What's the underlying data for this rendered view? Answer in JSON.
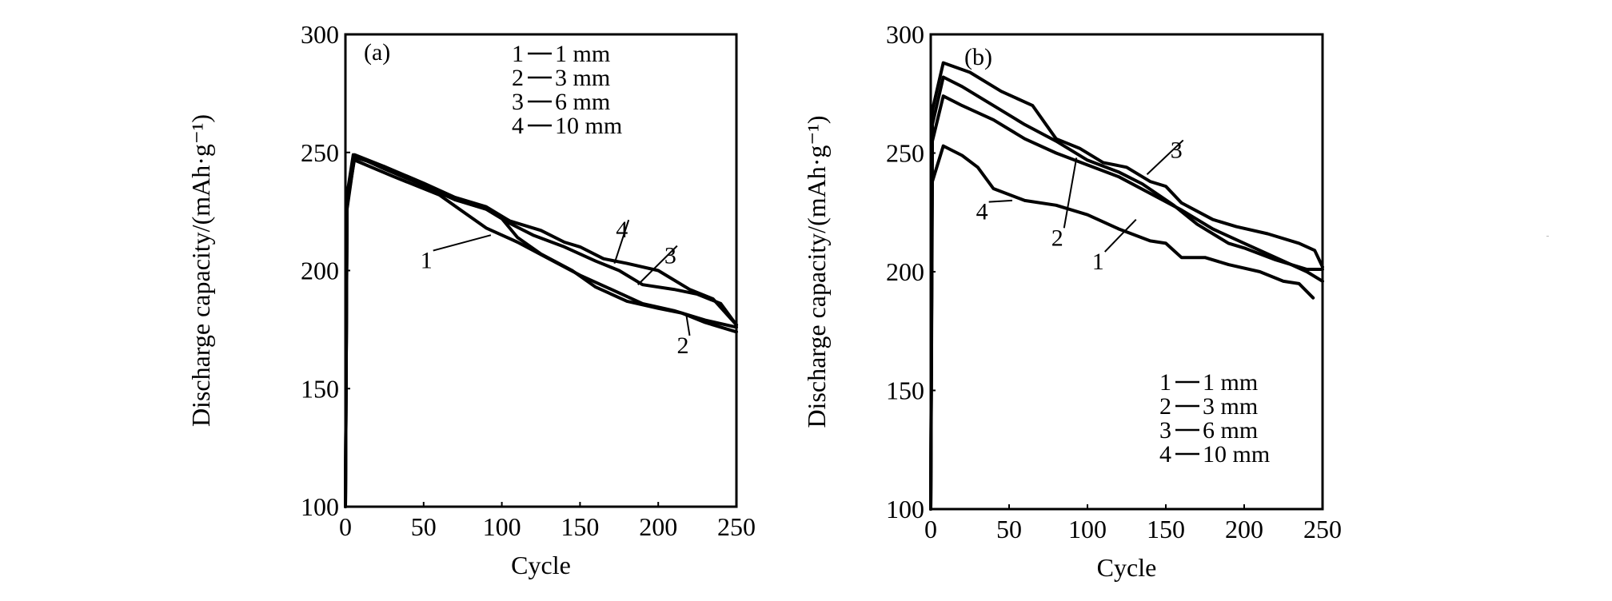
{
  "chart_data": [
    {
      "type": "line",
      "panel_label": "(a)",
      "xlabel": "Cycle",
      "ylabel": "Discharge capacity/(mAh·g⁻¹)",
      "xlim": [
        0,
        250
      ],
      "ylim": [
        100,
        300
      ],
      "xticks": [
        0,
        50,
        100,
        150,
        200,
        250
      ],
      "yticks": [
        100,
        150,
        200,
        250,
        300
      ],
      "grid": false,
      "legend_placement": "top-right",
      "legend": [
        {
          "num": "1",
          "label": "1 mm"
        },
        {
          "num": "2",
          "label": "3 mm"
        },
        {
          "num": "3",
          "label": "6 mm"
        },
        {
          "num": "4",
          "label": "10 mm"
        }
      ],
      "series": [
        {
          "name": "1",
          "x": [
            0,
            1,
            5,
            30,
            60,
            75,
            90,
            110,
            130,
            150,
            170,
            190,
            210,
            230,
            250
          ],
          "y": [
            100,
            230,
            247,
            240,
            232,
            225,
            218,
            212,
            205,
            198,
            192,
            186,
            183,
            179,
            176
          ]
        },
        {
          "name": "2",
          "x": [
            0,
            1,
            5,
            25,
            50,
            70,
            90,
            100,
            110,
            125,
            145,
            160,
            180,
            200,
            215,
            230,
            250
          ],
          "y": [
            100,
            232,
            249,
            243,
            236,
            230,
            226,
            222,
            214,
            207,
            200,
            193,
            187,
            184,
            182,
            178,
            174
          ]
        },
        {
          "name": "3",
          "x": [
            0,
            1,
            6,
            25,
            50,
            70,
            90,
            105,
            120,
            140,
            160,
            175,
            190,
            210,
            225,
            240,
            250
          ],
          "y": [
            100,
            228,
            248,
            244,
            236,
            230,
            226,
            220,
            215,
            210,
            204,
            200,
            194,
            192,
            190,
            186,
            177
          ]
        },
        {
          "name": "4",
          "x": [
            0,
            1,
            6,
            25,
            50,
            70,
            90,
            105,
            125,
            140,
            150,
            165,
            180,
            200,
            220,
            235,
            250
          ],
          "y": [
            100,
            226,
            249,
            244,
            237,
            231,
            227,
            221,
            217,
            212,
            210,
            205,
            203,
            200,
            192,
            188,
            177
          ]
        }
      ],
      "annotations": [
        {
          "text": "1",
          "x": 52,
          "y": 201,
          "to_x": 93,
          "to_y": 215
        },
        {
          "text": "2",
          "x": 216,
          "y": 165,
          "to_x": 218,
          "to_y": 181
        },
        {
          "text": "3",
          "x": 208,
          "y": 203,
          "to_x": 187,
          "to_y": 194
        },
        {
          "text": "4",
          "x": 177,
          "y": 214,
          "to_x": 172,
          "to_y": 203
        }
      ]
    },
    {
      "type": "line",
      "panel_label": "(b)",
      "xlabel": "Cycle",
      "ylabel": "Discharge capacity/(mAh·g⁻¹)",
      "xlim": [
        0,
        250
      ],
      "ylim": [
        100,
        300
      ],
      "xticks": [
        0,
        50,
        100,
        150,
        200,
        250
      ],
      "yticks": [
        100,
        150,
        200,
        250,
        300
      ],
      "grid": false,
      "legend_placement": "bottom-right",
      "legend": [
        {
          "num": "1",
          "label": "1 mm"
        },
        {
          "num": "2",
          "label": "3 mm"
        },
        {
          "num": "3",
          "label": "6 mm"
        },
        {
          "num": "4",
          "label": "10 mm"
        }
      ],
      "series": [
        {
          "name": "1",
          "x": [
            0,
            1,
            8,
            20,
            40,
            60,
            80,
            100,
            120,
            140,
            160,
            180,
            200,
            220,
            240,
            250
          ],
          "y": [
            100,
            255,
            274,
            270,
            264,
            256,
            250,
            245,
            240,
            233,
            226,
            218,
            212,
            206,
            200,
            196
          ]
        },
        {
          "name": "2",
          "x": [
            0,
            1,
            8,
            20,
            40,
            60,
            80,
            100,
            120,
            135,
            155,
            170,
            190,
            200,
            220,
            240,
            250
          ],
          "y": [
            100,
            262,
            282,
            278,
            270,
            262,
            255,
            247,
            242,
            237,
            228,
            220,
            212,
            210,
            205,
            201,
            201
          ]
        },
        {
          "name": "3",
          "x": [
            0,
            1,
            8,
            25,
            45,
            65,
            80,
            95,
            110,
            125,
            140,
            150,
            160,
            180,
            195,
            215,
            235,
            245,
            250
          ],
          "y": [
            100,
            268,
            288,
            284,
            276,
            270,
            256,
            252,
            246,
            244,
            238,
            236,
            229,
            222,
            219,
            216,
            212,
            209,
            202
          ]
        },
        {
          "name": "4",
          "x": [
            0,
            1,
            8,
            20,
            30,
            40,
            60,
            80,
            100,
            120,
            140,
            150,
            160,
            175,
            190,
            210,
            225,
            235,
            244
          ],
          "y": [
            100,
            238,
            253,
            249,
            244,
            235,
            230,
            228,
            224,
            218,
            213,
            212,
            206,
            206,
            203,
            200,
            196,
            195,
            189
          ]
        }
      ],
      "annotations": [
        {
          "text": "1",
          "x": 107,
          "y": 201,
          "to_x": 131,
          "to_y": 222
        },
        {
          "text": "2",
          "x": 81,
          "y": 211,
          "to_x": 93,
          "to_y": 248
        },
        {
          "text": "3",
          "x": 157,
          "y": 248,
          "to_x": 138,
          "to_y": 241
        },
        {
          "text": "4",
          "x": 33,
          "y": 222,
          "to_x": 52,
          "to_y": 230
        }
      ]
    }
  ]
}
